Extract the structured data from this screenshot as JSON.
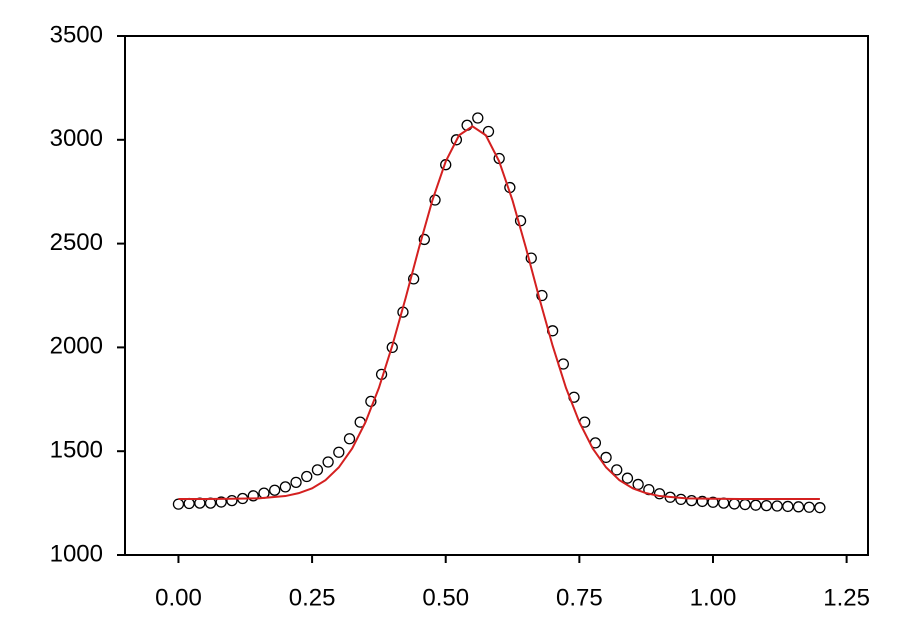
{
  "chart_data": {
    "type": "scatter",
    "xlim": [
      -0.1,
      1.29
    ],
    "ylim": [
      1000,
      3500
    ],
    "xticks": [
      {
        "value": 0,
        "label": "0.00"
      },
      {
        "value": 0.25,
        "label": "0.25"
      },
      {
        "value": 0.5,
        "label": "0.50"
      },
      {
        "value": 0.75,
        "label": "0.75"
      },
      {
        "value": 1,
        "label": "1.00"
      },
      {
        "value": 1.25,
        "label": "1.25"
      }
    ],
    "yticks": [
      1000,
      1500,
      2000,
      2500,
      3000,
      3500
    ],
    "grid": false,
    "series": [
      {
        "type": "scatter",
        "color": "#000000",
        "x": [
          0,
          0.02,
          0.04,
          0.06,
          0.08,
          0.1,
          0.12,
          0.14,
          0.16,
          0.18,
          0.2,
          0.22,
          0.24,
          0.26,
          0.28,
          0.3,
          0.32,
          0.34,
          0.36,
          0.38,
          0.4,
          0.42,
          0.44,
          0.46,
          0.48,
          0.5,
          0.52,
          0.54,
          0.56,
          0.58,
          0.6,
          0.62,
          0.64,
          0.66,
          0.68,
          0.7,
          0.72,
          0.74,
          0.76,
          0.78,
          0.8,
          0.82,
          0.84,
          0.86,
          0.88,
          0.9,
          0.92,
          0.94,
          0.96,
          0.98,
          1,
          1.02,
          1.04,
          1.06,
          1.08,
          1.1,
          1.12,
          1.14,
          1.16,
          1.18,
          1.2
        ],
        "values": [
          1245,
          1248,
          1250,
          1250,
          1255,
          1262,
          1272,
          1285,
          1298,
          1312,
          1328,
          1350,
          1378,
          1410,
          1448,
          1495,
          1560,
          1640,
          1740,
          1870,
          2000,
          2170,
          2330,
          2520,
          2710,
          2880,
          3000,
          3070,
          3105,
          3040,
          2910,
          2770,
          2610,
          2430,
          2250,
          2080,
          1920,
          1760,
          1640,
          1540,
          1470,
          1410,
          1370,
          1340,
          1315,
          1295,
          1278,
          1268,
          1262,
          1258,
          1254,
          1250,
          1246,
          1243,
          1240,
          1238,
          1236,
          1234,
          1232,
          1230,
          1228
        ]
      },
      {
        "type": "line",
        "color": "#d42020",
        "x": [
          0,
          0.05,
          0.1,
          0.15,
          0.2,
          0.225,
          0.25,
          0.275,
          0.3,
          0.325,
          0.35,
          0.375,
          0.4,
          0.425,
          0.45,
          0.475,
          0.5,
          0.525,
          0.55,
          0.575,
          0.6,
          0.625,
          0.65,
          0.675,
          0.7,
          0.725,
          0.75,
          0.775,
          0.8,
          0.825,
          0.85,
          0.875,
          0.9,
          0.95,
          1,
          1.05,
          1.1,
          1.15,
          1.2
        ],
        "values": [
          1270,
          1270,
          1271,
          1273,
          1284,
          1298,
          1321,
          1360,
          1422,
          1513,
          1640,
          1805,
          2008,
          2238,
          2480,
          2708,
          2896,
          3022,
          3065,
          3022,
          2896,
          2708,
          2480,
          2238,
          2008,
          1805,
          1640,
          1513,
          1422,
          1360,
          1321,
          1298,
          1284,
          1273,
          1271,
          1270,
          1270,
          1270,
          1270
        ]
      }
    ]
  }
}
